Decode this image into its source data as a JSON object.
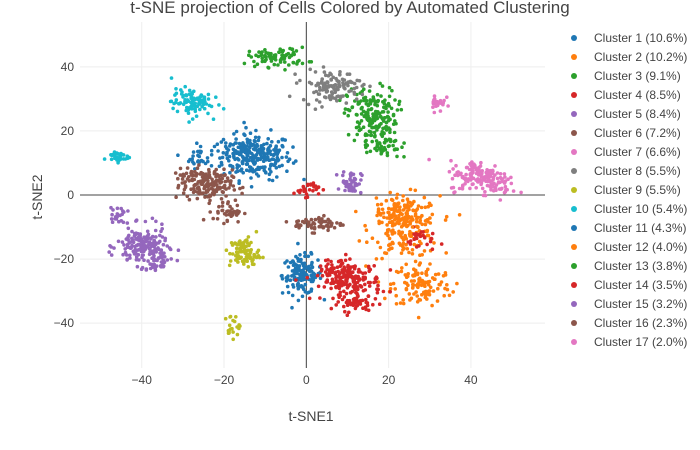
{
  "chart_data": {
    "type": "scatter",
    "title": "t-SNE projection of Cells Colored by Automated Clustering",
    "xlabel": "t-SNE1",
    "ylabel": "t-SNE2",
    "xlim": [
      -55,
      58
    ],
    "ylim": [
      -54,
      54
    ],
    "xticks": [
      -40,
      -20,
      0,
      20,
      40
    ],
    "yticks": [
      -40,
      -20,
      0,
      20,
      40
    ],
    "grid": true,
    "legend": "right",
    "series": [
      {
        "name": "Cluster 1 (10.6%)",
        "color": "#1f77b4",
        "blobs": [
          [
            -12,
            12,
            7,
            6,
            220
          ],
          [
            -26,
            12,
            3,
            3,
            30
          ],
          [
            -1,
            -25,
            4,
            5,
            140
          ]
        ]
      },
      {
        "name": "Cluster 2 (10.2%)",
        "color": "#ff7f0e",
        "blobs": [
          [
            24,
            -10,
            7,
            8,
            200
          ],
          [
            28,
            -28,
            6,
            6,
            120
          ]
        ]
      },
      {
        "name": "Cluster 3 (9.1%)",
        "color": "#2ca02c",
        "blobs": [
          [
            16,
            25,
            5,
            7,
            170
          ],
          [
            -7,
            43,
            6,
            2.5,
            80
          ]
        ]
      },
      {
        "name": "Cluster 4 (8.5%)",
        "color": "#d62728",
        "blobs": [
          [
            11,
            -27,
            6,
            5,
            160
          ],
          [
            13,
            -34,
            4,
            2,
            40
          ],
          [
            0,
            2,
            2.5,
            2,
            30
          ],
          [
            28,
            -14,
            3,
            3,
            25
          ]
        ]
      },
      {
        "name": "Cluster 5 (8.4%)",
        "color": "#9467bd",
        "blobs": [
          [
            -40,
            -16,
            5,
            5,
            170
          ],
          [
            -46,
            -6,
            2,
            2,
            20
          ],
          [
            11,
            4,
            2,
            3,
            50
          ]
        ]
      },
      {
        "name": "Cluster 6 (7.2%)",
        "color": "#8c564b",
        "blobs": [
          [
            -24,
            3,
            5,
            4,
            150
          ],
          [
            -19,
            -5,
            3,
            3,
            40
          ],
          [
            3,
            -9,
            5,
            2,
            60
          ]
        ]
      },
      {
        "name": "Cluster 7 (6.6%)",
        "color": "#e377c2",
        "blobs": [
          [
            42,
            6,
            6,
            4,
            140
          ],
          [
            32,
            29,
            1.5,
            2.5,
            25
          ]
        ]
      },
      {
        "name": "Cluster 8 (5.5%)",
        "color": "#7f7f7f",
        "blobs": [
          [
            6,
            34,
            6,
            4,
            120
          ]
        ]
      },
      {
        "name": "Cluster 9 (5.5%)",
        "color": "#bcbd22",
        "blobs": [
          [
            -15,
            -18,
            3,
            4,
            90
          ],
          [
            -18,
            -41,
            1.5,
            3,
            20
          ]
        ]
      },
      {
        "name": "Cluster 10 (5.4%)",
        "color": "#17becf",
        "blobs": [
          [
            -28,
            29,
            4,
            3.5,
            100
          ],
          [
            -46,
            12,
            2.5,
            1.5,
            30
          ]
        ]
      },
      {
        "name": "Cluster 11 (4.3%)",
        "color": "#1f77b4",
        "blobs": [
          [
            -16,
            14,
            4,
            4,
            60
          ]
        ]
      },
      {
        "name": "Cluster 12 (4.0%)",
        "color": "#ff7f0e",
        "blobs": [
          [
            22,
            -6,
            4,
            4,
            60
          ]
        ]
      },
      {
        "name": "Cluster 13 (3.8%)",
        "color": "#2ca02c",
        "blobs": [
          [
            18,
            16,
            4,
            4,
            55
          ]
        ]
      },
      {
        "name": "Cluster 14 (3.5%)",
        "color": "#d62728",
        "blobs": [
          [
            8,
            -24,
            4,
            4,
            55
          ]
        ]
      },
      {
        "name": "Cluster 15 (3.2%)",
        "color": "#9467bd",
        "blobs": [
          [
            -36,
            -20,
            3,
            3,
            45
          ]
        ]
      },
      {
        "name": "Cluster 16 (2.3%)",
        "color": "#8c564b",
        "blobs": [
          [
            -28,
            6,
            3,
            3,
            35
          ]
        ]
      },
      {
        "name": "Cluster 17 (2.0%)",
        "color": "#e377c2",
        "blobs": [
          [
            46,
            3,
            3,
            2.5,
            30
          ]
        ]
      }
    ]
  }
}
